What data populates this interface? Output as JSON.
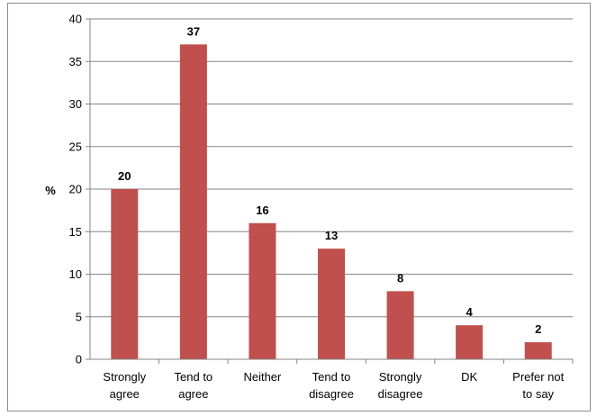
{
  "chart_data": {
    "type": "bar",
    "categories": [
      [
        "Strongly",
        "agree"
      ],
      [
        "Tend to",
        "agree"
      ],
      [
        "Neither"
      ],
      [
        "Tend to",
        "disagree"
      ],
      [
        "Strongly",
        "disagree"
      ],
      [
        "DK"
      ],
      [
        "Prefer not",
        "to say"
      ]
    ],
    "values": [
      20,
      37,
      16,
      13,
      8,
      4,
      2
    ],
    "ylabel": "%",
    "ylim": [
      0,
      40
    ],
    "yticks": [
      0,
      5,
      10,
      15,
      20,
      25,
      30,
      35,
      40
    ],
    "grid": true,
    "bar_color": "#c0504d",
    "gridline_color": "#868686"
  }
}
